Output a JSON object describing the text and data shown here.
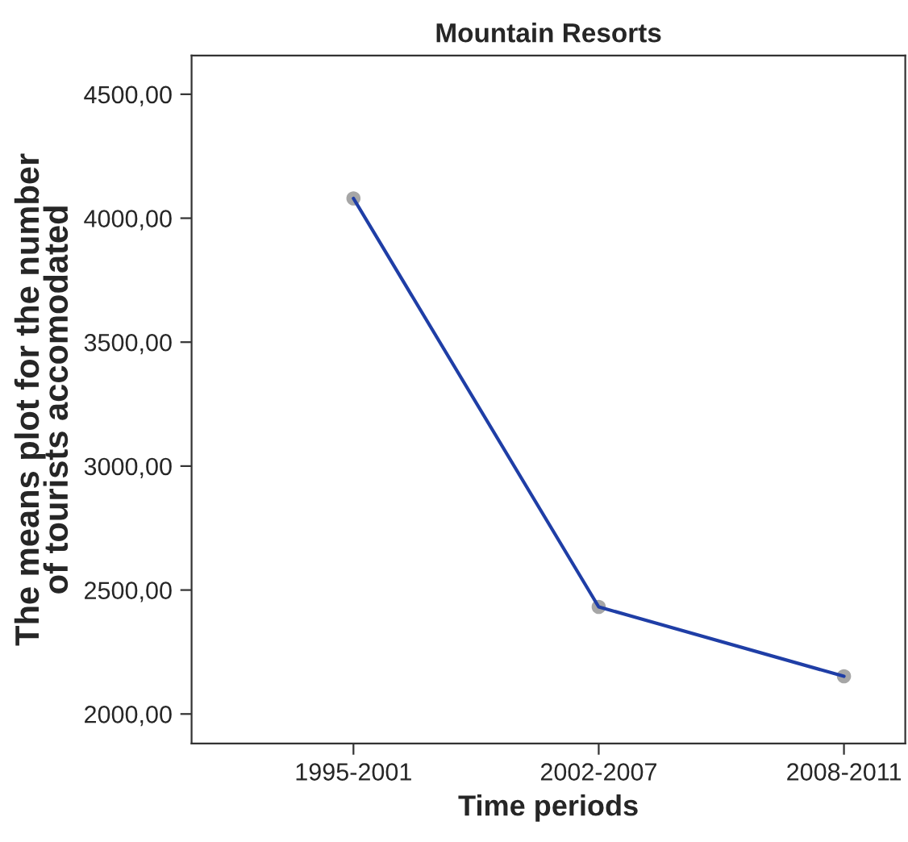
{
  "chart_data": {
    "type": "line",
    "title": "Mountain Resorts",
    "xlabel": "Time periods",
    "ylabel": "The means plot for the number\nof tourists accomodated",
    "categories": [
      "1995-2001",
      "2002-2007",
      "2008-2011"
    ],
    "series": [
      {
        "color": "#1f3ea6",
        "values": [
          4080,
          2432,
          2152
        ]
      }
    ],
    "ylim": [
      1881,
      4656
    ],
    "yticks": [
      {
        "value": 2000,
        "label": "2000,00"
      },
      {
        "value": 2500,
        "label": "2500,00"
      },
      {
        "value": 3000,
        "label": "3000,00"
      },
      {
        "value": 3500,
        "label": "3500,00"
      },
      {
        "value": 4000,
        "label": "4000,00"
      },
      {
        "value": 4500,
        "label": "4500,00"
      }
    ],
    "marker": "circle",
    "line_style": "solid",
    "grid": false,
    "legend": false
  }
}
